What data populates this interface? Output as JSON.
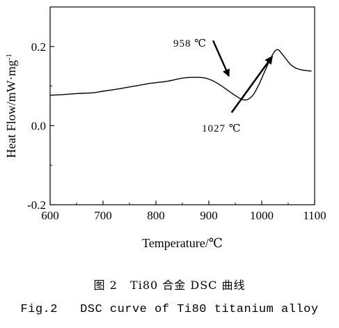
{
  "chart_data": {
    "type": "line",
    "xlabel": "Temperature/℃",
    "ylabel_main": "Heat Flow/mW·mg",
    "ylabel_sup": "-1",
    "xlim": [
      600,
      1100
    ],
    "ylim": [
      -0.2,
      0.3
    ],
    "x_ticks": [
      600,
      700,
      800,
      900,
      1000,
      1100
    ],
    "x_tick_labels": [
      "600",
      "700",
      "800",
      "900",
      "1000",
      "1100"
    ],
    "y_ticks": [
      -0.2,
      0.0,
      0.2
    ],
    "y_tick_labels": [
      "-0.2",
      "0.0",
      "0.2"
    ],
    "grid": false,
    "series": [
      {
        "x": [
          600,
          620,
          650,
          680,
          700,
          730,
          760,
          790,
          820,
          850,
          870,
          890,
          905,
          920,
          935,
          950,
          960,
          967,
          975,
          985,
          995,
          1005,
          1015,
          1022,
          1027,
          1031,
          1035,
          1045,
          1055,
          1065,
          1075,
          1085,
          1094
        ],
        "y": [
          0.077,
          0.078,
          0.081,
          0.083,
          0.087,
          0.093,
          0.1,
          0.107,
          0.112,
          0.12,
          0.122,
          0.121,
          0.115,
          0.104,
          0.09,
          0.076,
          0.068,
          0.065,
          0.067,
          0.08,
          0.105,
          0.135,
          0.165,
          0.183,
          0.191,
          0.192,
          0.187,
          0.17,
          0.154,
          0.145,
          0.141,
          0.139,
          0.138
        ]
      }
    ],
    "annotations": [
      {
        "text": "958 ℃",
        "arrow_from": [
          908,
          0.215
        ],
        "arrow_to": [
          938,
          0.125
        ]
      },
      {
        "text": "1027 ℃",
        "arrow_from": [
          943,
          0.033
        ],
        "arrow_to": [
          1020,
          0.175
        ]
      }
    ]
  },
  "caption": {
    "cn": "图 2   Ti80 合金 DSC 曲线",
    "en": "Fig.2   DSC curve of Ti80 titanium alloy"
  }
}
